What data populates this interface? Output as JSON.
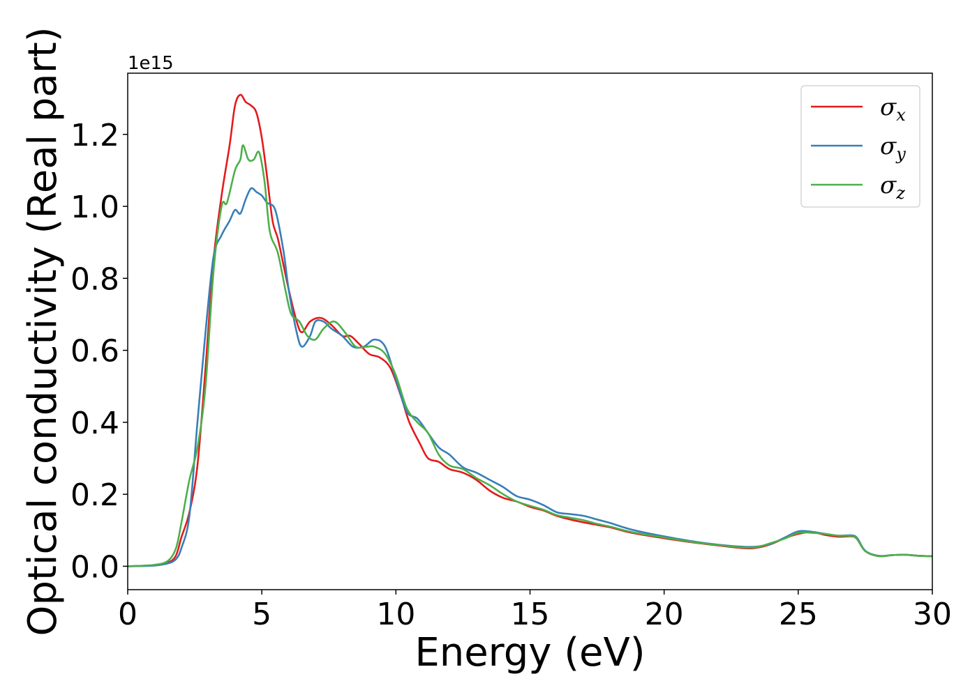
{
  "chart_data": {
    "type": "line",
    "xlabel": "Energy (eV)",
    "ylabel": "Optical conductivity (Real part)",
    "y_offset_label": "1e15",
    "y_scale": 1000000000000000.0,
    "xlim": [
      0,
      30
    ],
    "ylim": [
      -0.065,
      1.37
    ],
    "x_ticks": [
      0,
      5,
      10,
      15,
      20,
      25,
      30
    ],
    "x_tick_labels": [
      "0",
      "5",
      "10",
      "15",
      "20",
      "25",
      "30"
    ],
    "y_ticks": [
      0.0,
      0.2,
      0.4,
      0.6,
      0.8,
      1.0,
      1.2
    ],
    "y_tick_labels": [
      "0.0",
      "0.2",
      "0.4",
      "0.6",
      "0.8",
      "1.0",
      "1.2"
    ],
    "grid": false,
    "legend_position": "top-right",
    "series": [
      {
        "name": "σx",
        "symbol": "σ",
        "subscript": "x",
        "color": "#e41a1c",
        "points": [
          [
            0,
            0
          ],
          [
            1,
            0.003
          ],
          [
            1.5,
            0.01
          ],
          [
            1.8,
            0.03
          ],
          [
            2,
            0.08
          ],
          [
            2.3,
            0.15
          ],
          [
            2.6,
            0.28
          ],
          [
            2.9,
            0.55
          ],
          [
            3.2,
            0.85
          ],
          [
            3.5,
            1.03
          ],
          [
            3.8,
            1.17
          ],
          [
            4,
            1.28
          ],
          [
            4.2,
            1.31
          ],
          [
            4.4,
            1.29
          ],
          [
            4.6,
            1.28
          ],
          [
            4.8,
            1.26
          ],
          [
            5,
            1.19
          ],
          [
            5.2,
            1.08
          ],
          [
            5.4,
            0.96
          ],
          [
            5.6,
            0.91
          ],
          [
            5.8,
            0.84
          ],
          [
            6,
            0.77
          ],
          [
            6.3,
            0.68
          ],
          [
            6.5,
            0.65
          ],
          [
            6.8,
            0.68
          ],
          [
            7.2,
            0.69
          ],
          [
            7.6,
            0.67
          ],
          [
            8,
            0.64
          ],
          [
            8.3,
            0.64
          ],
          [
            8.6,
            0.62
          ],
          [
            9,
            0.59
          ],
          [
            9.4,
            0.58
          ],
          [
            9.8,
            0.55
          ],
          [
            10.2,
            0.47
          ],
          [
            10.5,
            0.4
          ],
          [
            10.9,
            0.34
          ],
          [
            11.2,
            0.3
          ],
          [
            11.6,
            0.29
          ],
          [
            12,
            0.27
          ],
          [
            12.5,
            0.26
          ],
          [
            13,
            0.24
          ],
          [
            13.5,
            0.21
          ],
          [
            14,
            0.19
          ],
          [
            14.5,
            0.18
          ],
          [
            15,
            0.165
          ],
          [
            15.5,
            0.155
          ],
          [
            16,
            0.14
          ],
          [
            16.5,
            0.13
          ],
          [
            17,
            0.122
          ],
          [
            17.5,
            0.115
          ],
          [
            18,
            0.108
          ],
          [
            18.5,
            0.098
          ],
          [
            19,
            0.09
          ],
          [
            20,
            0.078
          ],
          [
            21,
            0.067
          ],
          [
            22,
            0.058
          ],
          [
            23,
            0.05
          ],
          [
            23.5,
            0.052
          ],
          [
            24,
            0.062
          ],
          [
            24.5,
            0.078
          ],
          [
            25,
            0.09
          ],
          [
            25.5,
            0.095
          ],
          [
            26,
            0.087
          ],
          [
            26.5,
            0.082
          ],
          [
            27,
            0.083
          ],
          [
            27.2,
            0.075
          ],
          [
            27.5,
            0.042
          ],
          [
            28,
            0.028
          ],
          [
            28.5,
            0.031
          ],
          [
            29,
            0.032
          ],
          [
            29.5,
            0.029
          ],
          [
            30,
            0.028
          ]
        ]
      },
      {
        "name": "σy",
        "symbol": "σ",
        "subscript": "y",
        "color": "#377eb8",
        "points": [
          [
            0,
            0
          ],
          [
            1,
            0.002
          ],
          [
            1.5,
            0.008
          ],
          [
            1.8,
            0.02
          ],
          [
            2,
            0.05
          ],
          [
            2.3,
            0.14
          ],
          [
            2.6,
            0.4
          ],
          [
            2.9,
            0.65
          ],
          [
            3.2,
            0.86
          ],
          [
            3.5,
            0.92
          ],
          [
            3.8,
            0.96
          ],
          [
            4,
            0.99
          ],
          [
            4.2,
            0.98
          ],
          [
            4.4,
            1.02
          ],
          [
            4.6,
            1.05
          ],
          [
            4.8,
            1.04
          ],
          [
            5,
            1.03
          ],
          [
            5.2,
            1.01
          ],
          [
            5.5,
            0.99
          ],
          [
            5.8,
            0.88
          ],
          [
            6,
            0.77
          ],
          [
            6.3,
            0.65
          ],
          [
            6.5,
            0.61
          ],
          [
            6.8,
            0.64
          ],
          [
            7,
            0.68
          ],
          [
            7.3,
            0.68
          ],
          [
            7.6,
            0.66
          ],
          [
            8,
            0.64
          ],
          [
            8.4,
            0.61
          ],
          [
            8.8,
            0.61
          ],
          [
            9.2,
            0.63
          ],
          [
            9.6,
            0.61
          ],
          [
            10,
            0.52
          ],
          [
            10.4,
            0.43
          ],
          [
            10.8,
            0.41
          ],
          [
            11.2,
            0.37
          ],
          [
            11.6,
            0.33
          ],
          [
            12,
            0.31
          ],
          [
            12.5,
            0.275
          ],
          [
            13,
            0.26
          ],
          [
            13.5,
            0.24
          ],
          [
            14,
            0.22
          ],
          [
            14.5,
            0.195
          ],
          [
            15,
            0.185
          ],
          [
            15.5,
            0.17
          ],
          [
            16,
            0.15
          ],
          [
            16.5,
            0.145
          ],
          [
            17,
            0.14
          ],
          [
            17.5,
            0.13
          ],
          [
            18,
            0.12
          ],
          [
            18.5,
            0.108
          ],
          [
            19,
            0.098
          ],
          [
            20,
            0.083
          ],
          [
            21,
            0.07
          ],
          [
            22,
            0.06
          ],
          [
            23,
            0.054
          ],
          [
            23.5,
            0.055
          ],
          [
            24,
            0.063
          ],
          [
            24.5,
            0.08
          ],
          [
            25,
            0.097
          ],
          [
            25.5,
            0.096
          ],
          [
            26,
            0.09
          ],
          [
            26.5,
            0.085
          ],
          [
            27,
            0.086
          ],
          [
            27.2,
            0.078
          ],
          [
            27.5,
            0.043
          ],
          [
            28,
            0.029
          ],
          [
            28.5,
            0.031
          ],
          [
            29,
            0.032
          ],
          [
            29.5,
            0.029
          ],
          [
            30,
            0.028
          ]
        ]
      },
      {
        "name": "σz",
        "symbol": "σ",
        "subscript": "z",
        "color": "#4daf4a",
        "points": [
          [
            0,
            0
          ],
          [
            1,
            0.004
          ],
          [
            1.5,
            0.015
          ],
          [
            1.8,
            0.05
          ],
          [
            2,
            0.12
          ],
          [
            2.3,
            0.24
          ],
          [
            2.6,
            0.33
          ],
          [
            2.9,
            0.5
          ],
          [
            3.2,
            0.82
          ],
          [
            3.5,
            1.0
          ],
          [
            3.7,
            1.01
          ],
          [
            4,
            1.1
          ],
          [
            4.2,
            1.13
          ],
          [
            4.3,
            1.17
          ],
          [
            4.5,
            1.13
          ],
          [
            4.7,
            1.13
          ],
          [
            4.9,
            1.15
          ],
          [
            5.1,
            1.07
          ],
          [
            5.3,
            0.93
          ],
          [
            5.6,
            0.87
          ],
          [
            5.9,
            0.76
          ],
          [
            6.1,
            0.7
          ],
          [
            6.4,
            0.68
          ],
          [
            6.7,
            0.64
          ],
          [
            7,
            0.63
          ],
          [
            7.3,
            0.66
          ],
          [
            7.7,
            0.68
          ],
          [
            8.1,
            0.65
          ],
          [
            8.5,
            0.61
          ],
          [
            8.9,
            0.61
          ],
          [
            9.2,
            0.61
          ],
          [
            9.6,
            0.59
          ],
          [
            10,
            0.53
          ],
          [
            10.4,
            0.44
          ],
          [
            10.8,
            0.4
          ],
          [
            11.2,
            0.37
          ],
          [
            11.6,
            0.31
          ],
          [
            12,
            0.28
          ],
          [
            12.5,
            0.27
          ],
          [
            13,
            0.245
          ],
          [
            13.5,
            0.225
          ],
          [
            14,
            0.2
          ],
          [
            14.5,
            0.18
          ],
          [
            15,
            0.168
          ],
          [
            15.5,
            0.157
          ],
          [
            16,
            0.142
          ],
          [
            16.5,
            0.135
          ],
          [
            17,
            0.128
          ],
          [
            17.5,
            0.118
          ],
          [
            18,
            0.11
          ],
          [
            18.5,
            0.1
          ],
          [
            19,
            0.092
          ],
          [
            20,
            0.08
          ],
          [
            21,
            0.068
          ],
          [
            22,
            0.059
          ],
          [
            23,
            0.052
          ],
          [
            23.5,
            0.054
          ],
          [
            24,
            0.065
          ],
          [
            24.5,
            0.077
          ],
          [
            25,
            0.093
          ],
          [
            25.5,
            0.093
          ],
          [
            26,
            0.09
          ],
          [
            26.5,
            0.085
          ],
          [
            27,
            0.084
          ],
          [
            27.2,
            0.075
          ],
          [
            27.5,
            0.042
          ],
          [
            28,
            0.028
          ],
          [
            28.5,
            0.031
          ],
          [
            29,
            0.032
          ],
          [
            29.5,
            0.029
          ],
          [
            30,
            0.028
          ]
        ]
      }
    ]
  }
}
